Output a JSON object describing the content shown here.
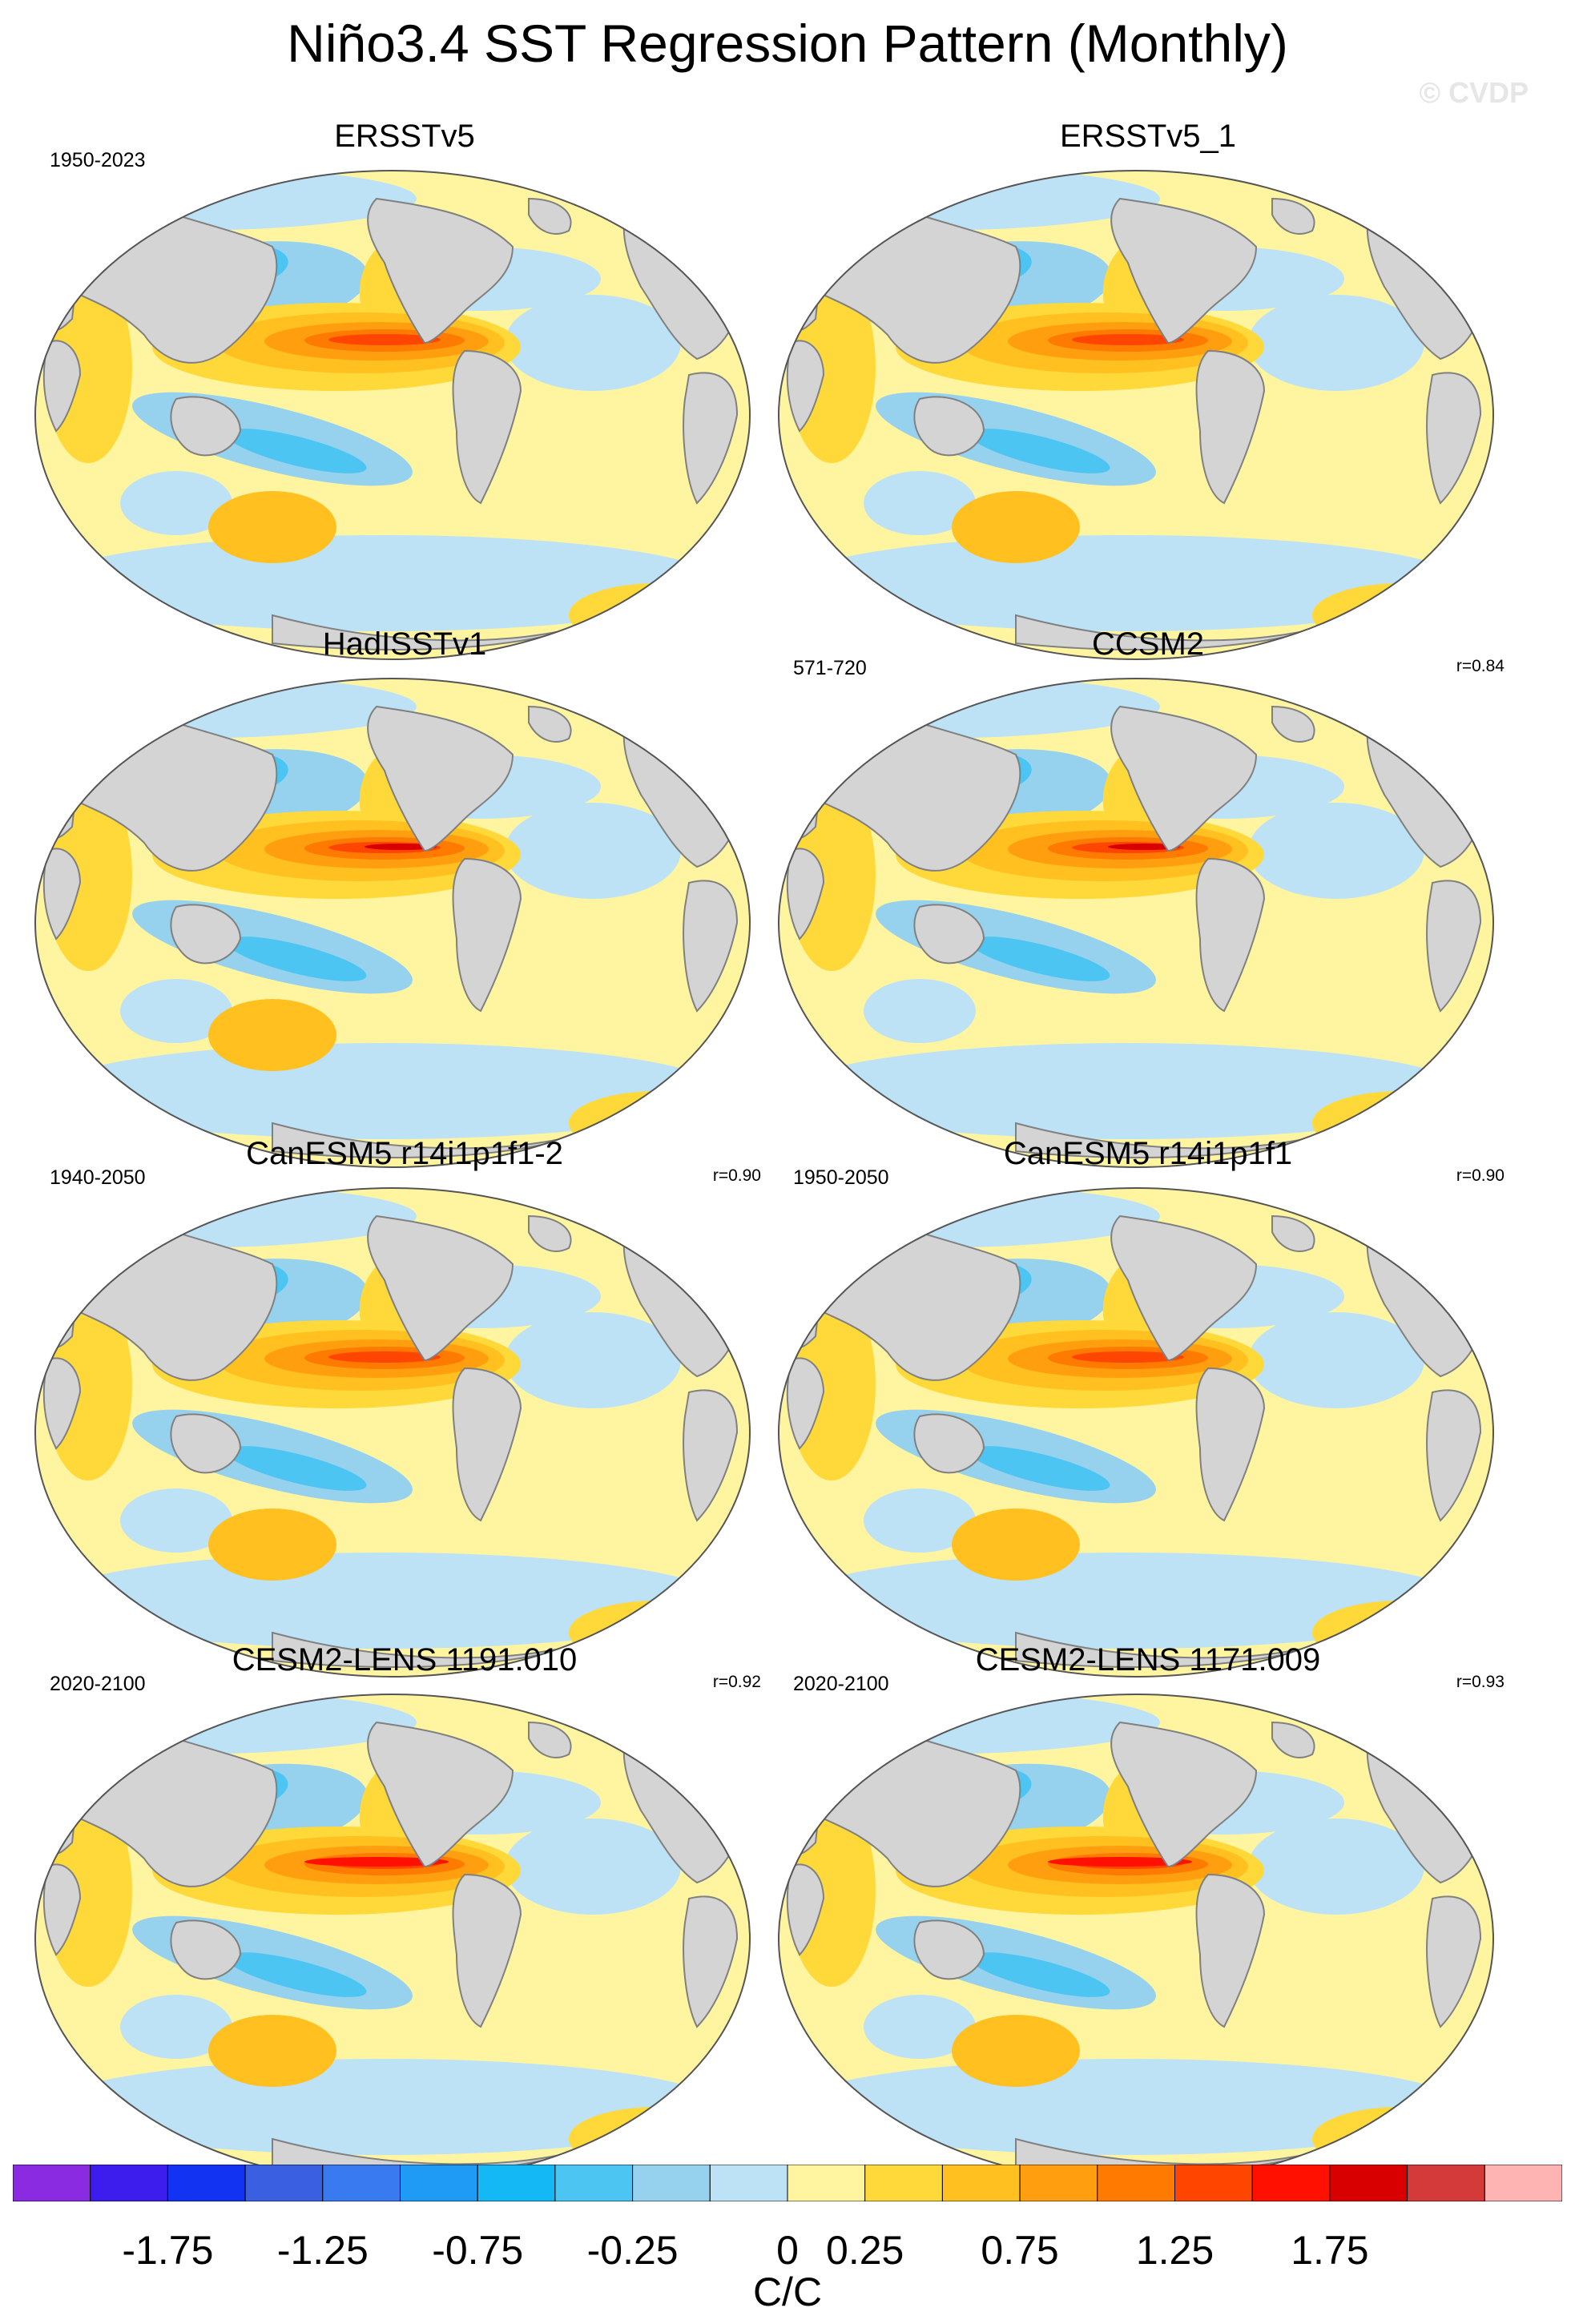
{
  "figure": {
    "title": "Niño3.4 SST Regression Pattern (Monthly)",
    "watermark": "© CVDP",
    "units": "C/C"
  },
  "colors": {
    "land": "#d4d4d4",
    "land_edge": "#808080",
    "ocean_base": "#fff5a0",
    "levels": [
      "#8a2be2",
      "#3c1dee",
      "#1233f2",
      "#3a5fe0",
      "#3a7af0",
      "#1f9af5",
      "#14b8f5",
      "#4cc5f2",
      "#96d1ee",
      "#bde2f5",
      "#fff5a0",
      "#ffd83a",
      "#ffc020",
      "#ff9f10",
      "#ff7a00",
      "#ff4500",
      "#ff1000",
      "#d80000",
      "#d43a3a",
      "#ffb4b4"
    ]
  },
  "colorbar": {
    "tick_labels": [
      "-1.75",
      "-1.25",
      "-0.75",
      "-0.25",
      "0",
      "0.25",
      "0.75",
      "1.25",
      "1.75"
    ],
    "tick_boundary_index": [
      2,
      4,
      6,
      8,
      10,
      11,
      13,
      15,
      17
    ]
  },
  "panels": [
    {
      "title": "ERSSTv5",
      "period": "1950-2023",
      "corr": "",
      "style": "obs"
    },
    {
      "title": "ERSSTv5_1",
      "period": "",
      "corr": "",
      "style": "obs"
    },
    {
      "title": "HadISSTv1",
      "period": "",
      "corr": "",
      "style": "obs2"
    },
    {
      "title": "CCSM2",
      "period": "571-720",
      "corr": "r=0.84",
      "style": "ccsm"
    },
    {
      "title": "CanESM5 r14i1p1f1-2",
      "period": "1940-2050",
      "corr": "r=0.90",
      "style": "canesm"
    },
    {
      "title": "CanESM5 r14i1p1f1",
      "period": "1950-2050",
      "corr": "r=0.90",
      "style": "canesm"
    },
    {
      "title": "CESM2-LENS 1191.010",
      "period": "2020-2100",
      "corr": "r=0.92",
      "style": "cesm"
    },
    {
      "title": "CESM2-LENS 1171.009",
      "period": "2020-2100",
      "corr": "r=0.93",
      "style": "cesm"
    }
  ]
}
